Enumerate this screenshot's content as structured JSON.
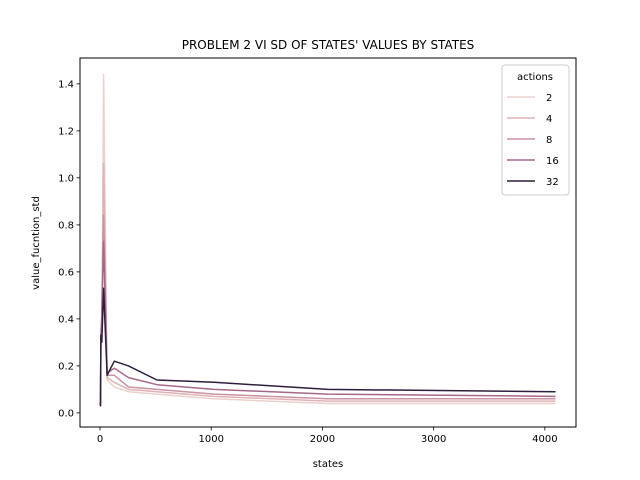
{
  "chart_data": {
    "type": "line",
    "title": "PROBLEM 2 VI SD OF STATES' VALUES BY STATES",
    "xlabel": "states",
    "ylabel": "value_fucntion_std",
    "xlim": [
      -180,
      4280
    ],
    "ylim": [
      -0.06,
      1.51
    ],
    "xticks": [
      0,
      1000,
      2000,
      3000,
      4000
    ],
    "yticks": [
      0.0,
      0.2,
      0.4,
      0.6,
      0.8,
      1.0,
      1.2,
      1.4
    ],
    "grid": false,
    "legend": {
      "title": "actions",
      "placement": "top-right"
    },
    "series": [
      {
        "name": "2",
        "color": "#ecd0cc",
        "x": [
          2,
          4,
          8,
          16,
          32,
          64,
          128,
          256,
          512,
          1024,
          2048,
          4096
        ],
        "y": [
          0.04,
          0.05,
          0.3,
          0.35,
          1.44,
          0.14,
          0.11,
          0.09,
          0.08,
          0.06,
          0.04,
          0.04
        ]
      },
      {
        "name": "4",
        "color": "#dfb3b5",
        "x": [
          2,
          4,
          8,
          16,
          32,
          64,
          128,
          256,
          512,
          1024,
          2048,
          4096
        ],
        "y": [
          0.04,
          0.05,
          0.32,
          0.38,
          1.06,
          0.15,
          0.13,
          0.1,
          0.09,
          0.07,
          0.05,
          0.05
        ]
      },
      {
        "name": "8",
        "color": "#ca92a2",
        "x": [
          2,
          4,
          8,
          16,
          32,
          64,
          128,
          256,
          512,
          1024,
          2048,
          4096
        ],
        "y": [
          0.04,
          0.04,
          0.34,
          0.4,
          0.84,
          0.16,
          0.16,
          0.11,
          0.1,
          0.08,
          0.06,
          0.06
        ]
      },
      {
        "name": "16",
        "color": "#a7678a",
        "x": [
          2,
          4,
          8,
          16,
          32,
          64,
          128,
          256,
          512,
          1024,
          2048,
          4096
        ],
        "y": [
          0.04,
          0.03,
          0.3,
          0.42,
          0.73,
          0.17,
          0.19,
          0.15,
          0.12,
          0.1,
          0.08,
          0.07
        ]
      },
      {
        "name": "32",
        "color": "#2d1e3e",
        "x": [
          2,
          4,
          8,
          16,
          32,
          64,
          128,
          256,
          512,
          1024,
          2048,
          4096
        ],
        "y": [
          0.04,
          0.03,
          0.33,
          0.3,
          0.53,
          0.16,
          0.22,
          0.2,
          0.14,
          0.13,
          0.1,
          0.09
        ]
      }
    ]
  }
}
